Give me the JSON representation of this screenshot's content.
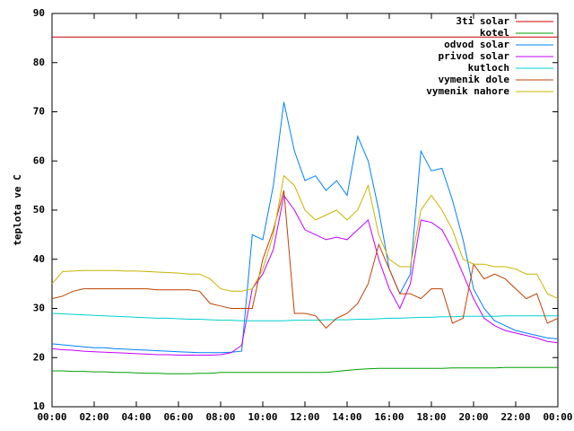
{
  "chart_data": {
    "type": "line",
    "y_label": "teplota ve C",
    "xlim": [
      0,
      24
    ],
    "ylim": [
      10,
      90
    ],
    "xticks": [
      {
        "value": 0,
        "label": "00:00"
      },
      {
        "value": 2,
        "label": "02:00"
      },
      {
        "value": 4,
        "label": "04:00"
      },
      {
        "value": 6,
        "label": "06:00"
      },
      {
        "value": 8,
        "label": "08:00"
      },
      {
        "value": 10,
        "label": "10:00"
      },
      {
        "value": 12,
        "label": "12:00"
      },
      {
        "value": 14,
        "label": "14:00"
      },
      {
        "value": 16,
        "label": "16:00"
      },
      {
        "value": 18,
        "label": "18:00"
      },
      {
        "value": 20,
        "label": "20:00"
      },
      {
        "value": 22,
        "label": "22:00"
      },
      {
        "value": 24,
        "label": "00:00"
      }
    ],
    "yticks": [
      10,
      20,
      30,
      40,
      50,
      60,
      70,
      80,
      90
    ],
    "grid": false,
    "legend": "top-right",
    "x": [
      0,
      0.5,
      1,
      1.5,
      2,
      2.5,
      3,
      3.5,
      4,
      4.5,
      5,
      5.5,
      6,
      6.5,
      7,
      7.5,
      8,
      8.5,
      9,
      9.5,
      10,
      10.5,
      11,
      11.5,
      12,
      12.5,
      13,
      13.5,
      14,
      14.5,
      15,
      15.5,
      16,
      16.5,
      17,
      17.5,
      18,
      18.5,
      19,
      19.5,
      20,
      20.5,
      21,
      21.5,
      22,
      22.5,
      23,
      23.5,
      24
    ],
    "series": [
      {
        "name": "3ti solar",
        "color": "#cc0000",
        "values": [
          85.2,
          85.2,
          85.2,
          85.2,
          85.2,
          85.2,
          85.2,
          85.2,
          85.2,
          85.2,
          85.2,
          85.2,
          85.2,
          85.2,
          85.2,
          85.2,
          85.2,
          85.2,
          85.2,
          85.2,
          85.2,
          85.2,
          85.2,
          85.2,
          85.2,
          85.2,
          85.2,
          85.2,
          85.2,
          85.2,
          85.2,
          85.2,
          85.2,
          85.2,
          85.2,
          85.2,
          85.2,
          85.2,
          85.2,
          85.2,
          85.2,
          85.2,
          85.2,
          85.2,
          85.2,
          85.2,
          85.2,
          85.2,
          85.2
        ]
      },
      {
        "name": "kotel",
        "color": "#00a000",
        "values": [
          17.3,
          17.3,
          17.2,
          17.2,
          17.1,
          17.1,
          17,
          17,
          16.9,
          16.8,
          16.8,
          16.7,
          16.7,
          16.7,
          16.8,
          16.8,
          17,
          17,
          17,
          17,
          17,
          17,
          17,
          17,
          17,
          17,
          17,
          17.2,
          17.4,
          17.6,
          17.7,
          17.8,
          17.8,
          17.8,
          17.8,
          17.8,
          17.8,
          17.8,
          17.9,
          17.9,
          17.9,
          17.9,
          17.9,
          18,
          18,
          18,
          18,
          18,
          18
        ]
      },
      {
        "name": "odvod solar",
        "color": "#0080ff",
        "values": [
          22.8,
          22.6,
          22.4,
          22.2,
          22,
          22,
          21.8,
          21.7,
          21.6,
          21.5,
          21.4,
          21.3,
          21.2,
          21.1,
          21,
          21,
          21,
          21.1,
          21.3,
          45,
          44,
          55,
          72,
          62,
          56,
          57,
          54,
          56,
          53,
          65,
          60,
          50,
          38,
          33,
          37,
          62,
          58,
          58.5,
          52,
          44,
          34,
          30,
          27.5,
          26.5,
          25.5,
          25,
          24.5,
          24,
          23.8
        ]
      },
      {
        "name": "privod solar",
        "color": "#c000ff",
        "values": [
          21.8,
          21.6,
          21.5,
          21.3,
          21.2,
          21.1,
          21,
          20.9,
          20.8,
          20.7,
          20.6,
          20.6,
          20.5,
          20.5,
          20.5,
          20.5,
          20.6,
          21,
          22.5,
          34,
          37,
          42,
          53,
          50,
          46,
          45,
          44,
          44.5,
          44,
          46,
          48,
          40,
          34,
          30,
          35,
          48,
          47.5,
          46,
          42,
          37,
          32,
          28,
          26.5,
          25.5,
          25,
          24.5,
          24,
          23.3,
          23
        ]
      },
      {
        "name": "kutloch",
        "color": "#00d0d0",
        "values": [
          29,
          28.9,
          28.8,
          28.7,
          28.6,
          28.5,
          28.4,
          28.3,
          28.2,
          28.1,
          28,
          28,
          27.9,
          27.8,
          27.8,
          27.7,
          27.6,
          27.6,
          27.5,
          27.5,
          27.5,
          27.5,
          27.5,
          27.6,
          27.6,
          27.6,
          27.7,
          27.7,
          27.7,
          27.8,
          27.8,
          27.9,
          28,
          28,
          28.1,
          28.2,
          28.2,
          28.3,
          28.3,
          28.4,
          28.4,
          28.4,
          28.4,
          28.5,
          28.5,
          28.5,
          28.5,
          28.5,
          28.5
        ]
      },
      {
        "name": "vymenik dole",
        "color": "#c04000",
        "values": [
          32,
          32.5,
          33.5,
          34,
          34,
          34,
          34,
          34,
          34,
          34,
          33.8,
          33.8,
          33.8,
          33.8,
          33.5,
          31,
          30.5,
          30,
          30,
          30,
          40,
          46,
          54,
          29,
          29,
          28.5,
          26,
          28,
          29,
          31,
          35,
          43,
          38,
          33,
          33,
          32,
          34,
          34,
          27,
          28,
          39,
          36,
          37,
          36,
          34,
          32,
          33,
          27,
          28
        ]
      },
      {
        "name": "vymenik nahore",
        "color": "#c8b400",
        "values": [
          35,
          37.5,
          37.6,
          37.7,
          37.7,
          37.7,
          37.7,
          37.6,
          37.6,
          37.5,
          37.4,
          37.3,
          37.2,
          37,
          37,
          36,
          34,
          33.5,
          33.5,
          34,
          38,
          45,
          57,
          55,
          50,
          48,
          49,
          50,
          48,
          50,
          55,
          45,
          40,
          38.5,
          38.5,
          50,
          53,
          50,
          46,
          40,
          39,
          39,
          38.5,
          38.5,
          38,
          37,
          37,
          33,
          32
        ]
      }
    ]
  }
}
